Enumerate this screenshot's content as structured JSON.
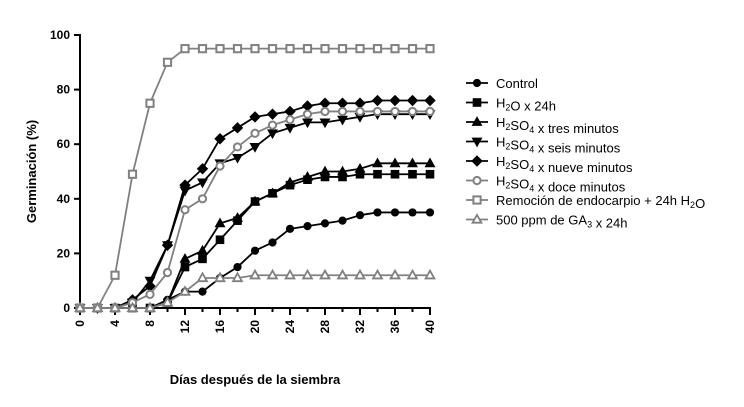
{
  "chart_data": {
    "type": "line",
    "title": "",
    "xlabel": "Días después de la siembra",
    "ylabel": "Germinación (%)",
    "xlim": [
      0,
      40
    ],
    "ylim": [
      0,
      100
    ],
    "x_ticks": [
      0,
      4,
      8,
      12,
      16,
      20,
      24,
      28,
      32,
      36,
      40
    ],
    "y_ticks": [
      0,
      20,
      40,
      60,
      80,
      100
    ],
    "grid": false,
    "legend_position": "right",
    "x": [
      0,
      2,
      4,
      6,
      8,
      10,
      12,
      14,
      16,
      18,
      20,
      22,
      24,
      26,
      28,
      30,
      32,
      34,
      36,
      38,
      40
    ],
    "series": [
      {
        "name": "Control",
        "legend_prefix": "Control",
        "legend_sub": "",
        "legend_suffix": "",
        "marker": "circle",
        "color": "#000000",
        "fill": "#000000",
        "values": [
          0,
          0,
          0,
          0,
          0,
          3,
          6,
          6,
          11,
          15,
          21,
          24,
          29,
          30,
          31,
          32,
          34,
          35,
          35,
          35,
          35
        ]
      },
      {
        "name": "H2O x 24h",
        "legend_prefix": "H",
        "legend_sub": "2",
        "legend_suffix": "O x 24h",
        "marker": "square",
        "color": "#000000",
        "fill": "#000000",
        "values": [
          0,
          0,
          0,
          0,
          0,
          2,
          15,
          18,
          25,
          32,
          39,
          42,
          45,
          47,
          48,
          48,
          49,
          49,
          49,
          49,
          49
        ]
      },
      {
        "name": "H2SO4 x tres minutos",
        "legend_prefix": "H",
        "legend_sub": "2",
        "legend_suffix": "SO4 x tres minutos",
        "marker": "triangle-up",
        "color": "#000000",
        "fill": "#000000",
        "values": [
          0,
          0,
          0,
          0,
          0,
          2,
          18,
          21,
          31,
          33,
          39,
          42,
          46,
          48,
          50,
          50,
          51,
          53,
          53,
          53,
          53
        ]
      },
      {
        "name": "H2SO4 x seis minutos",
        "legend_prefix": "H",
        "legend_sub": "2",
        "legend_suffix": "SO4 x seis minutos",
        "marker": "triangle-down",
        "color": "#000000",
        "fill": "#000000",
        "values": [
          0,
          0,
          0,
          2,
          10,
          23,
          43,
          46,
          53,
          55,
          59,
          64,
          66,
          68,
          68,
          69,
          70,
          71,
          71,
          71,
          71
        ]
      },
      {
        "name": "H2SO4 x nueve minutos",
        "legend_prefix": "H",
        "legend_sub": "2",
        "legend_suffix": "SO4 x nueve minutos",
        "marker": "diamond",
        "color": "#000000",
        "fill": "#000000",
        "values": [
          0,
          0,
          0,
          3,
          8,
          23,
          45,
          51,
          62,
          66,
          70,
          71,
          72,
          74,
          75,
          75,
          75,
          76,
          76,
          76,
          76
        ]
      },
      {
        "name": "H2SO4 x doce minutos",
        "legend_prefix": "H",
        "legend_sub": "2",
        "legend_suffix": "SO4 x doce minutos",
        "marker": "circle-open",
        "color": "#808080",
        "fill": "#ffffff",
        "values": [
          0,
          0,
          0,
          2,
          5,
          13,
          36,
          40,
          52,
          59,
          64,
          67,
          69,
          71,
          72,
          72,
          72,
          72,
          72,
          72,
          72
        ]
      },
      {
        "name": "Remoción de endocarpio + 24h H2O",
        "legend_prefix": "Remoción de endocarpio + 24h H",
        "legend_sub": "2",
        "legend_suffix": "O",
        "marker": "square-open",
        "color": "#808080",
        "fill": "#ffffff",
        "values": [
          0,
          0,
          12,
          49,
          75,
          90,
          95,
          95,
          95,
          95,
          95,
          95,
          95,
          95,
          95,
          95,
          95,
          95,
          95,
          95,
          95
        ]
      },
      {
        "name": "500 ppm de GA3 x 24h",
        "legend_prefix": "500 ppm de GA",
        "legend_sub": "3",
        "legend_suffix": " x 24h",
        "marker": "triangle-open",
        "color": "#808080",
        "fill": "#ffffff",
        "values": [
          0,
          0,
          0,
          0,
          0,
          2,
          6,
          11,
          11,
          11,
          12,
          12,
          12,
          12,
          12,
          12,
          12,
          12,
          12,
          12,
          12
        ]
      }
    ]
  }
}
